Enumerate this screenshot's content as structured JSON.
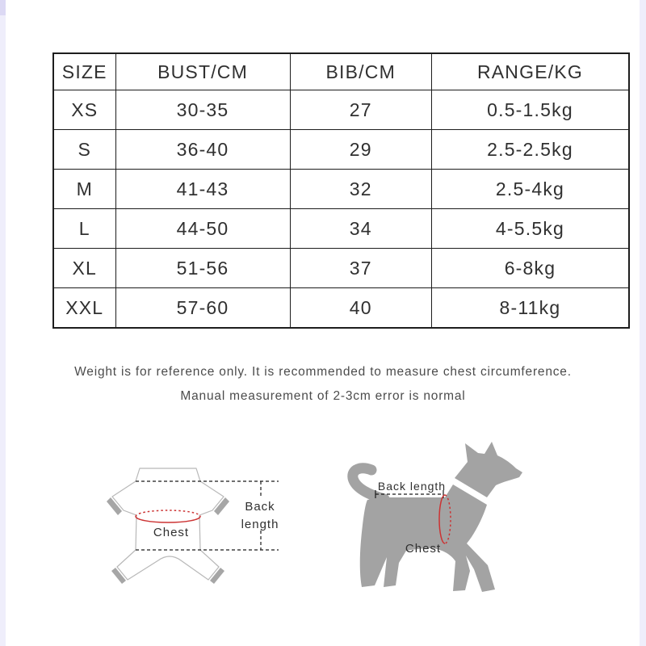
{
  "size_table": {
    "columns": [
      "SIZE",
      "BUST/CM",
      "BIB/CM",
      "RANGE/KG"
    ],
    "rows": [
      [
        "XS",
        "30-35",
        "27",
        "0.5-1.5kg"
      ],
      [
        "S",
        "36-40",
        "29",
        "2.5-2.5kg"
      ],
      [
        "M",
        "41-43",
        "32",
        "2.5-4kg"
      ],
      [
        "L",
        "44-50",
        "34",
        "4-5.5kg"
      ],
      [
        "XL",
        "51-56",
        "37",
        "6-8kg"
      ],
      [
        "XXL",
        "57-60",
        "40",
        "8-11kg"
      ]
    ]
  },
  "note": {
    "line1": "Weight is for reference only. It is recommended to measure chest circumference.",
    "line2": "Manual measurement of 2-3cm error is normal"
  },
  "diagrams": {
    "garment": {
      "chest_label": "Chest",
      "back_label_line1": "Back",
      "back_label_line2": "length"
    },
    "dog": {
      "back_length_label": "Back length",
      "chest_label": "Chest"
    }
  },
  "colors": {
    "accent_red": "#cc3333",
    "silhouette_gray": "#a3a3a3",
    "outline_gray": "#b8b8b8",
    "cuff_gray": "#a6a6a6",
    "table_border": "#1d1d1d",
    "table_text": "#303030",
    "note_text": "#4c4c4c",
    "line_dark": "#1a1a1a",
    "edge_strip": "#efeefb",
    "edge_strip_dark": "#dcd9f4"
  }
}
